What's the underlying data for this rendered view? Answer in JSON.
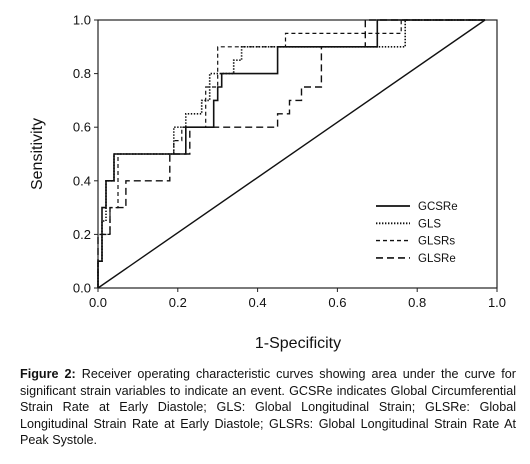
{
  "chart_data": {
    "type": "line",
    "xlabel": "1-Specificity",
    "ylabel": "Sensitivity",
    "xlim": [
      0,
      1
    ],
    "ylim": [
      0,
      1
    ],
    "x_ticks": [
      "0.0",
      "0.2",
      "0.4",
      "0.6",
      "0.8",
      "1.0"
    ],
    "y_ticks": [
      "0.0",
      "0.2",
      "0.4",
      "0.6",
      "0.8",
      "1.0"
    ],
    "grid": false,
    "legend_position": "bottom-right",
    "reference_line": {
      "x": [
        0,
        0.97
      ],
      "y": [
        0,
        1
      ]
    },
    "series": [
      {
        "name": "GCSRe",
        "style": "solid",
        "x": [
          0.0,
          0.0,
          0.01,
          0.01,
          0.02,
          0.02,
          0.04,
          0.04,
          0.22,
          0.22,
          0.29,
          0.29,
          0.3,
          0.3,
          0.31,
          0.31,
          0.45,
          0.45,
          0.7,
          0.7,
          0.97
        ],
        "y": [
          0.0,
          0.1,
          0.1,
          0.3,
          0.3,
          0.4,
          0.4,
          0.5,
          0.5,
          0.6,
          0.6,
          0.7,
          0.7,
          0.75,
          0.75,
          0.8,
          0.8,
          0.9,
          0.9,
          1.0,
          1.0
        ]
      },
      {
        "name": "GLS",
        "style": "dotted",
        "x": [
          0.0,
          0.0,
          0.01,
          0.01,
          0.02,
          0.02,
          0.04,
          0.04,
          0.19,
          0.19,
          0.22,
          0.22,
          0.26,
          0.26,
          0.28,
          0.28,
          0.34,
          0.34,
          0.36,
          0.36,
          0.77,
          0.77,
          0.97
        ],
        "y": [
          0.0,
          0.1,
          0.1,
          0.25,
          0.25,
          0.4,
          0.4,
          0.5,
          0.5,
          0.6,
          0.6,
          0.65,
          0.65,
          0.7,
          0.7,
          0.8,
          0.8,
          0.85,
          0.85,
          0.9,
          0.9,
          1.0,
          1.0
        ]
      },
      {
        "name": "GLSRs",
        "style": "dashed",
        "x": [
          0.0,
          0.0,
          0.01,
          0.01,
          0.03,
          0.03,
          0.05,
          0.05,
          0.19,
          0.19,
          0.21,
          0.21,
          0.27,
          0.27,
          0.3,
          0.3,
          0.47,
          0.47,
          0.76,
          0.76,
          0.97
        ],
        "y": [
          0.0,
          0.1,
          0.1,
          0.2,
          0.2,
          0.3,
          0.3,
          0.5,
          0.5,
          0.55,
          0.55,
          0.6,
          0.6,
          0.75,
          0.75,
          0.9,
          0.9,
          0.95,
          0.95,
          1.0,
          1.0
        ]
      },
      {
        "name": "GLSRe",
        "style": "long-dashed",
        "x": [
          0.0,
          0.0,
          0.03,
          0.03,
          0.07,
          0.07,
          0.09,
          0.09,
          0.18,
          0.18,
          0.23,
          0.23,
          0.3,
          0.3,
          0.45,
          0.45,
          0.48,
          0.48,
          0.51,
          0.51,
          0.56,
          0.56,
          0.67,
          0.67,
          0.97
        ],
        "y": [
          0.0,
          0.2,
          0.2,
          0.3,
          0.3,
          0.4,
          0.4,
          0.4,
          0.4,
          0.5,
          0.5,
          0.6,
          0.6,
          0.6,
          0.6,
          0.65,
          0.65,
          0.7,
          0.7,
          0.75,
          0.75,
          0.9,
          0.9,
          1.0,
          1.0
        ]
      }
    ]
  },
  "caption": {
    "label": "Figure 2:",
    "text": " Receiver operating characteristic curves showing area under the curve for significant strain variables to indicate an event. GCSRe indicates Global Circumferential Strain Rate at Early Diastole; GLS: Global Longitudinal Strain; GLSRe: Global Longitudinal Strain Rate at Early Diastole; GLSRs: Global Longitudinal Strain Rate At Peak Systole."
  }
}
